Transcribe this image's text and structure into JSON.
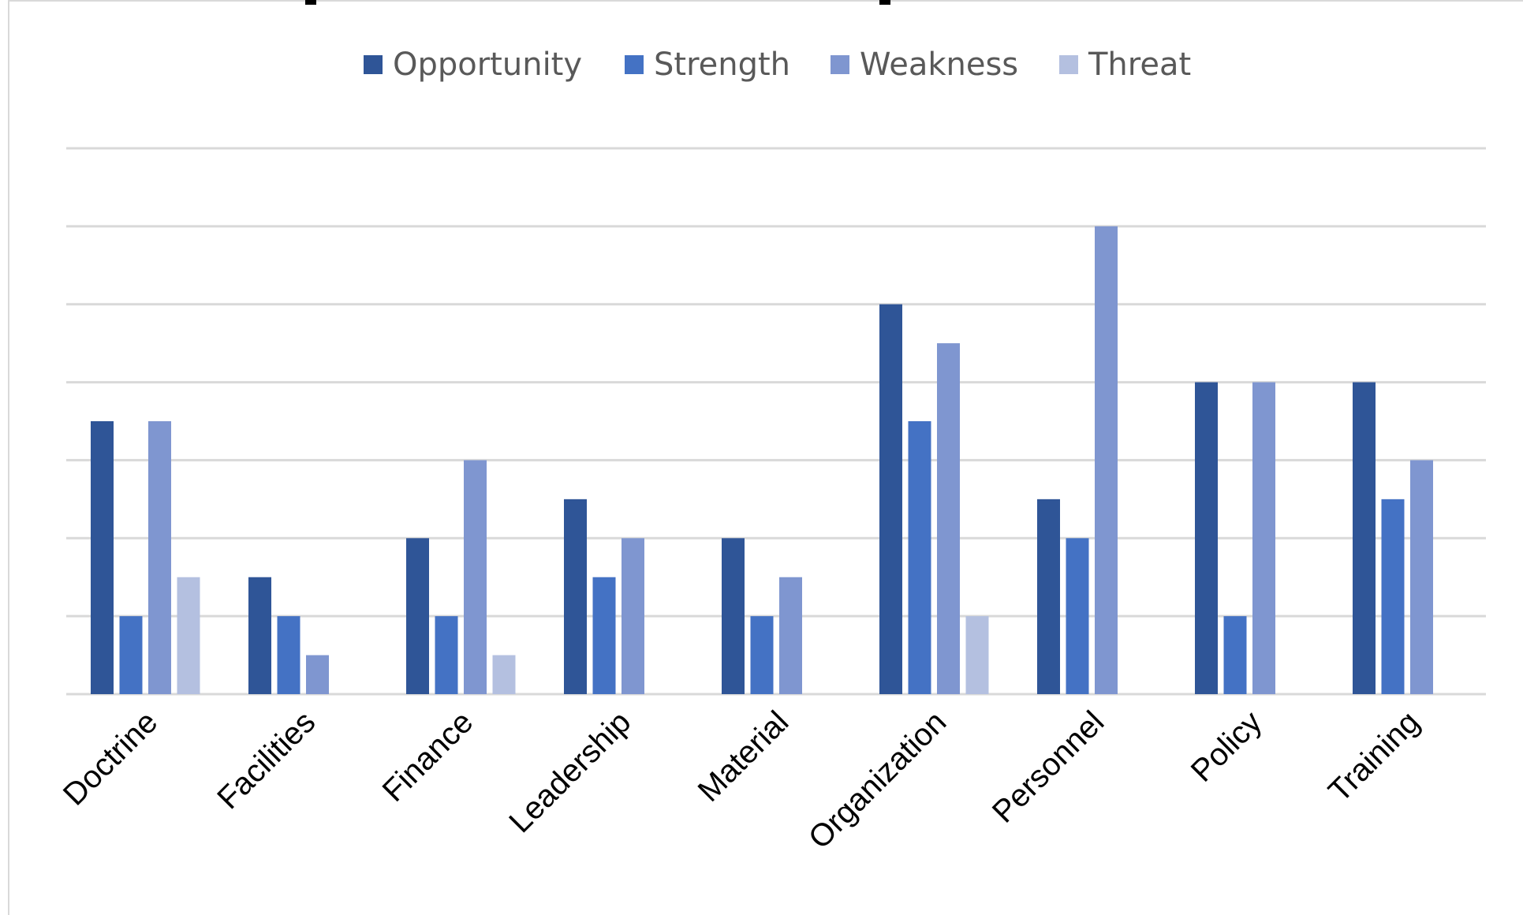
{
  "chart_data": {
    "type": "bar",
    "title": "",
    "xlabel": "",
    "ylabel": "",
    "ylim": [
      0,
      14
    ],
    "grid": true,
    "legend_position": "top",
    "categories": [
      "Doctrine",
      "Facilities",
      "Finance",
      "Leadership",
      "Material",
      "Organization",
      "Personnel",
      "Policy",
      "Training"
    ],
    "series": [
      {
        "name": "Opportunity",
        "color": "#2f5597",
        "values": [
          7,
          3,
          4,
          5,
          4,
          10,
          5,
          8,
          8
        ]
      },
      {
        "name": "Strength",
        "color": "#4472c4",
        "values": [
          2,
          2,
          2,
          3,
          2,
          7,
          4,
          2,
          5
        ]
      },
      {
        "name": "Weakness",
        "color": "#7f96d0",
        "values": [
          7,
          1,
          6,
          4,
          3,
          9,
          12,
          8,
          6
        ]
      },
      {
        "name": "Threat",
        "color": "#b4c0e0",
        "values": [
          3,
          0,
          1,
          0,
          0,
          2,
          0,
          0,
          0
        ]
      }
    ]
  }
}
